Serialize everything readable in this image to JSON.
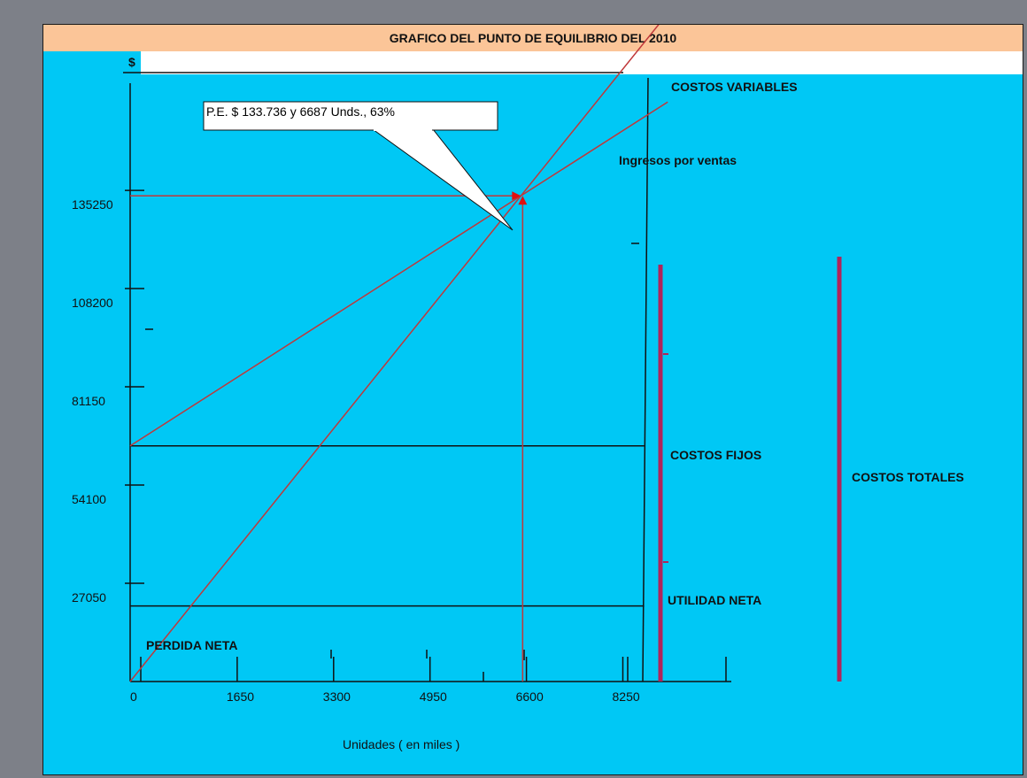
{
  "chart_data": {
    "type": "line",
    "title": "GRAFICO DEL PUNTO DE EQUILIBRIO DEL 2010",
    "y_unit": "$",
    "xlabel": "Unidades ( en miles )",
    "x_ticks": [
      0,
      1650,
      3300,
      4950,
      6600,
      8250
    ],
    "y_ticks": [
      27050,
      54100,
      81150,
      108200,
      135250
    ],
    "xlim": [
      0,
      9900
    ],
    "ylim": [
      0,
      165000
    ],
    "series": [
      {
        "name": "Ingresos por ventas",
        "points": [
          [
            0,
            0
          ],
          [
            6687,
            133736
          ],
          [
            9200,
            184000
          ]
        ]
      },
      {
        "name": "COSTOS VARIABLES",
        "points": [
          [
            0,
            64900
          ],
          [
            6687,
            133736
          ],
          [
            9200,
            159600
          ]
        ]
      },
      {
        "name": "COSTOS FIJOS",
        "points": [
          [
            0,
            64900
          ],
          [
            9100,
            64900
          ]
        ]
      },
      {
        "name": "",
        "points": [
          [
            0,
            20800
          ],
          [
            9100,
            20800
          ]
        ]
      }
    ],
    "break_even": {
      "x": 6687,
      "y": 133736,
      "label": "P.E. $ 133.736 y 6687 Unds., 63%"
    },
    "annotations": {
      "costos_variables": "COSTOS VARIABLES",
      "ingresos": "Ingresos por ventas",
      "costos_fijos": "COSTOS FIJOS",
      "costos_totales": "COSTOS TOTALES",
      "utilidad_neta": "UTILIDAD NETA",
      "perdida_neta": "PERDIDA NETA"
    },
    "colors": {
      "background": "#00c8f5",
      "title_bar": "#fbc598",
      "lines": "#c0383a",
      "axis": "#111111",
      "brace": "#b0245a"
    }
  }
}
